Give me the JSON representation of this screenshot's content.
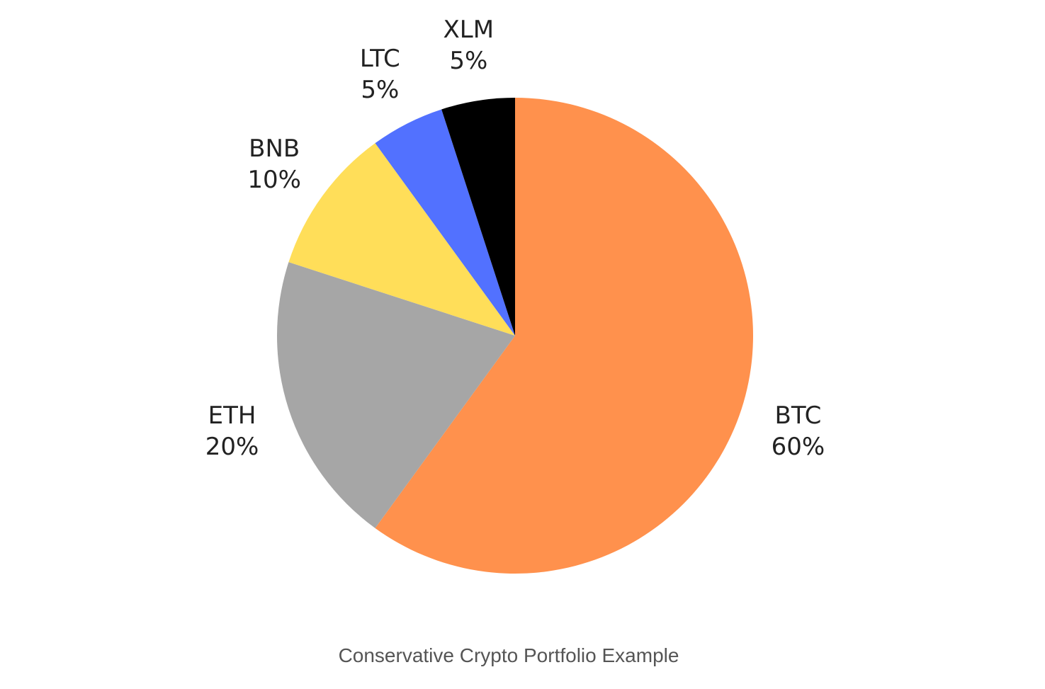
{
  "caption": "Conservative Crypto Portfolio Example",
  "chart_data": {
    "type": "pie",
    "title": "",
    "slices": [
      {
        "label": "BTC",
        "value": 60,
        "display": "60%",
        "color": "#FF914D"
      },
      {
        "label": "ETH",
        "value": 20,
        "display": "20%",
        "color": "#A6A6A6"
      },
      {
        "label": "BNB",
        "value": 10,
        "display": "10%",
        "color": "#FFDE59"
      },
      {
        "label": "LTC",
        "value": 5,
        "display": "5%",
        "color": "#5271FF"
      },
      {
        "label": "XLM",
        "value": 5,
        "display": "5%",
        "color": "#000000"
      }
    ],
    "start_angle": "12 o'clock",
    "direction": "clockwise",
    "legend": "none",
    "labels": "outside each slice, name above percentage"
  }
}
